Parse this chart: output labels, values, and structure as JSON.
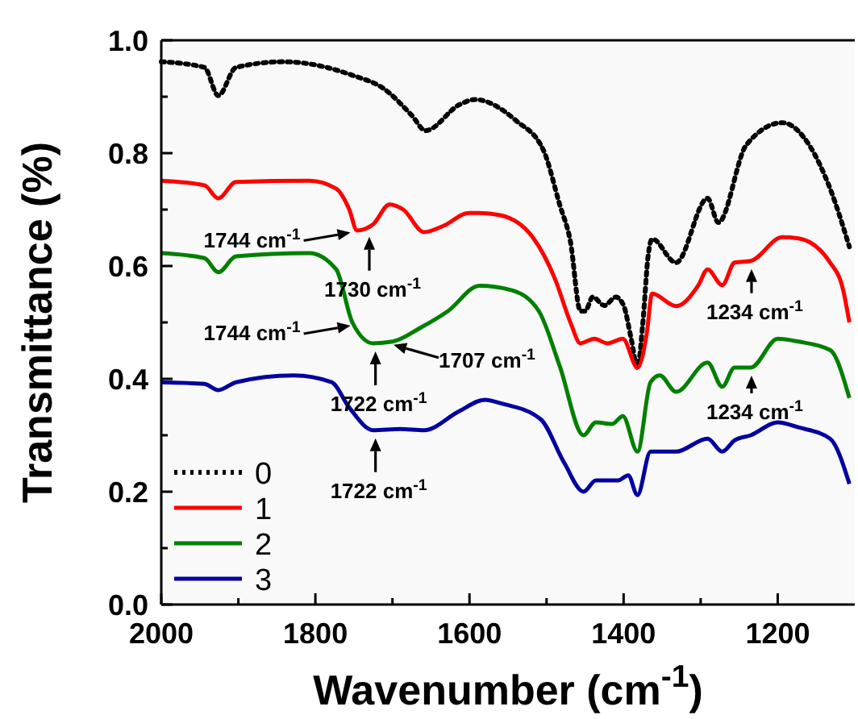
{
  "chart_data": {
    "type": "line",
    "xlabel": "Wavenumber (cm$^{-1}$)",
    "ylabel": "Transmittance (%)",
    "xlim": [
      2000,
      1100
    ],
    "ylim": [
      0,
      1
    ],
    "xticks": [
      2000,
      {
        "value": 1900,
        "label": null
      },
      1800,
      {
        "value": 1700,
        "label": null
      },
      1600,
      {
        "value": 1500,
        "label": null
      },
      1400,
      {
        "value": 1300,
        "label": null
      },
      1200
    ],
    "yticks": [
      {
        "value": 0,
        "label": "0.0"
      },
      {
        "value": 0.1,
        "label": null
      },
      0.2,
      {
        "value": 0.3,
        "label": null
      },
      0.4,
      {
        "value": 0.5,
        "label": null
      },
      0.6,
      {
        "value": 0.7,
        "label": null
      },
      0.8,
      {
        "value": 0.9,
        "label": null
      },
      {
        "value": 1,
        "label": "1.0"
      }
    ],
    "grid": false,
    "legend": "bottom left",
    "marker": "none",
    "series": [
      {
        "name": "0",
        "color": "#000000",
        "line_style": "dotted",
        "x": [
          2000,
          1944,
          1926,
          1903,
          1841,
          1752,
          1711,
          1675,
          1657,
          1613,
          1593,
          1539,
          1504,
          1483,
          1469,
          1456,
          1450,
          1440,
          1425,
          1410,
          1400,
          1390,
          1382,
          1375,
          1368,
          1363,
          1332,
          1291,
          1277,
          1241,
          1194,
          1159,
          1132,
          1107
        ],
        "values": [
          0.962,
          0.952,
          0.902,
          0.952,
          0.962,
          0.938,
          0.914,
          0.867,
          0.84,
          0.886,
          0.895,
          0.857,
          0.805,
          0.709,
          0.643,
          0.52,
          0.52,
          0.545,
          0.53,
          0.545,
          0.53,
          0.47,
          0.42,
          0.5,
          0.62,
          0.648,
          0.606,
          0.72,
          0.677,
          0.814,
          0.854,
          0.814,
          0.737,
          0.634
        ]
      },
      {
        "name": "1",
        "color": "#ff0000",
        "line_style": "solid",
        "x": [
          2000,
          1944,
          1926,
          1903,
          1808,
          1773,
          1756,
          1746,
          1735,
          1725,
          1704,
          1686,
          1659,
          1634,
          1601,
          1587,
          1560,
          1518,
          1489,
          1469,
          1456,
          1438,
          1421,
          1401,
          1382,
          1370,
          1363,
          1332,
          1303,
          1291,
          1272,
          1256,
          1235,
          1194,
          1173,
          1132,
          1115,
          1107
        ],
        "values": [
          0.751,
          0.743,
          0.72,
          0.749,
          0.751,
          0.737,
          0.7,
          0.663,
          0.666,
          0.674,
          0.709,
          0.7,
          0.66,
          0.671,
          0.694,
          0.694,
          0.69,
          0.651,
          0.577,
          0.5,
          0.463,
          0.471,
          0.463,
          0.471,
          0.42,
          0.48,
          0.551,
          0.529,
          0.566,
          0.594,
          0.566,
          0.606,
          0.609,
          0.651,
          0.649,
          0.606,
          0.557,
          0.5
        ]
      },
      {
        "name": "2",
        "color": "#008000",
        "line_style": "solid",
        "x": [
          2000,
          1944,
          1926,
          1903,
          1808,
          1773,
          1752,
          1725,
          1700,
          1663,
          1628,
          1587,
          1545,
          1510,
          1483,
          1452,
          1436,
          1415,
          1401,
          1382,
          1365,
          1353,
          1332,
          1291,
          1272,
          1256,
          1235,
          1200,
          1173,
          1132,
          1107
        ],
        "values": [
          0.623,
          0.614,
          0.589,
          0.617,
          0.623,
          0.594,
          0.5,
          0.463,
          0.466,
          0.491,
          0.52,
          0.565,
          0.557,
          0.52,
          0.423,
          0.3,
          0.323,
          0.32,
          0.334,
          0.271,
          0.394,
          0.406,
          0.377,
          0.429,
          0.386,
          0.42,
          0.42,
          0.471,
          0.466,
          0.451,
          0.366
        ]
      },
      {
        "name": "3",
        "color": "#0000a0",
        "line_style": "solid",
        "x": [
          2000,
          1944,
          1926,
          1903,
          1828,
          1779,
          1756,
          1725,
          1690,
          1659,
          1613,
          1580,
          1560,
          1508,
          1477,
          1452,
          1436,
          1407,
          1394,
          1382,
          1365,
          1332,
          1291,
          1272,
          1256,
          1235,
          1200,
          1173,
          1132,
          1107
        ],
        "values": [
          0.394,
          0.391,
          0.38,
          0.394,
          0.406,
          0.394,
          0.349,
          0.309,
          0.311,
          0.309,
          0.343,
          0.363,
          0.357,
          0.329,
          0.251,
          0.2,
          0.22,
          0.22,
          0.229,
          0.194,
          0.271,
          0.271,
          0.294,
          0.271,
          0.291,
          0.3,
          0.323,
          0.314,
          0.294,
          0.214
        ]
      }
    ],
    "annotations": [
      {
        "text": "1744 cm$^{-1}$",
        "x": 1744,
        "y": 0.665
      },
      {
        "text": "1730 cm$^{-1}$",
        "x": 1730,
        "y": 0.666
      },
      {
        "text": "1744 cm$^{-1}$",
        "x": 1744,
        "y": 0.5
      },
      {
        "text": "1707 cm$^{-1}$",
        "x": 1707,
        "y": 0.466
      },
      {
        "text": "1722 cm$^{-1}$",
        "x": 1722,
        "y": 0.463
      },
      {
        "text": "1234 cm$^{-1}$",
        "x": 1234,
        "y": 0.609
      },
      {
        "text": "1234 cm$^{-1}$",
        "x": 1234,
        "y": 0.42
      },
      {
        "text": "1722 cm$^{-1}$",
        "x": 1722,
        "y": 0.309
      }
    ]
  }
}
